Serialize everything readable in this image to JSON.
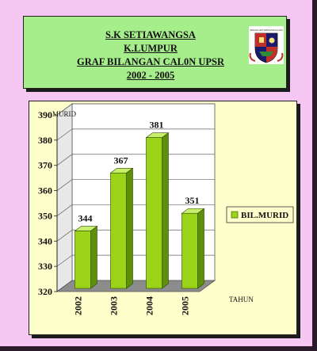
{
  "header": {
    "line1": "S.K   SETIAWANGSA",
    "line2": "K.LUMPUR",
    "line3": "GRAF  BILANGAN  CAL0N  UPSR",
    "line4": "2002 - 2005"
  },
  "colors": {
    "background": "#f7c7f4",
    "header_panel": "#a6ee8c",
    "chart_panel": "#ffffcc",
    "bar": "#9bd318"
  },
  "chart_data": {
    "type": "bar",
    "title": "",
    "ylabel": "MURID",
    "xlabel": "TAHUN",
    "categories": [
      "2002",
      "2003",
      "2004",
      "2005"
    ],
    "series": [
      {
        "name": "BIL.MURID",
        "values": [
          344,
          367,
          381,
          351
        ]
      }
    ],
    "ylim": [
      320,
      390
    ],
    "yticks": [
      320,
      330,
      340,
      350,
      360,
      370,
      380,
      390
    ],
    "data_labels": true,
    "grid": true,
    "legend": "right",
    "style": "3d"
  }
}
